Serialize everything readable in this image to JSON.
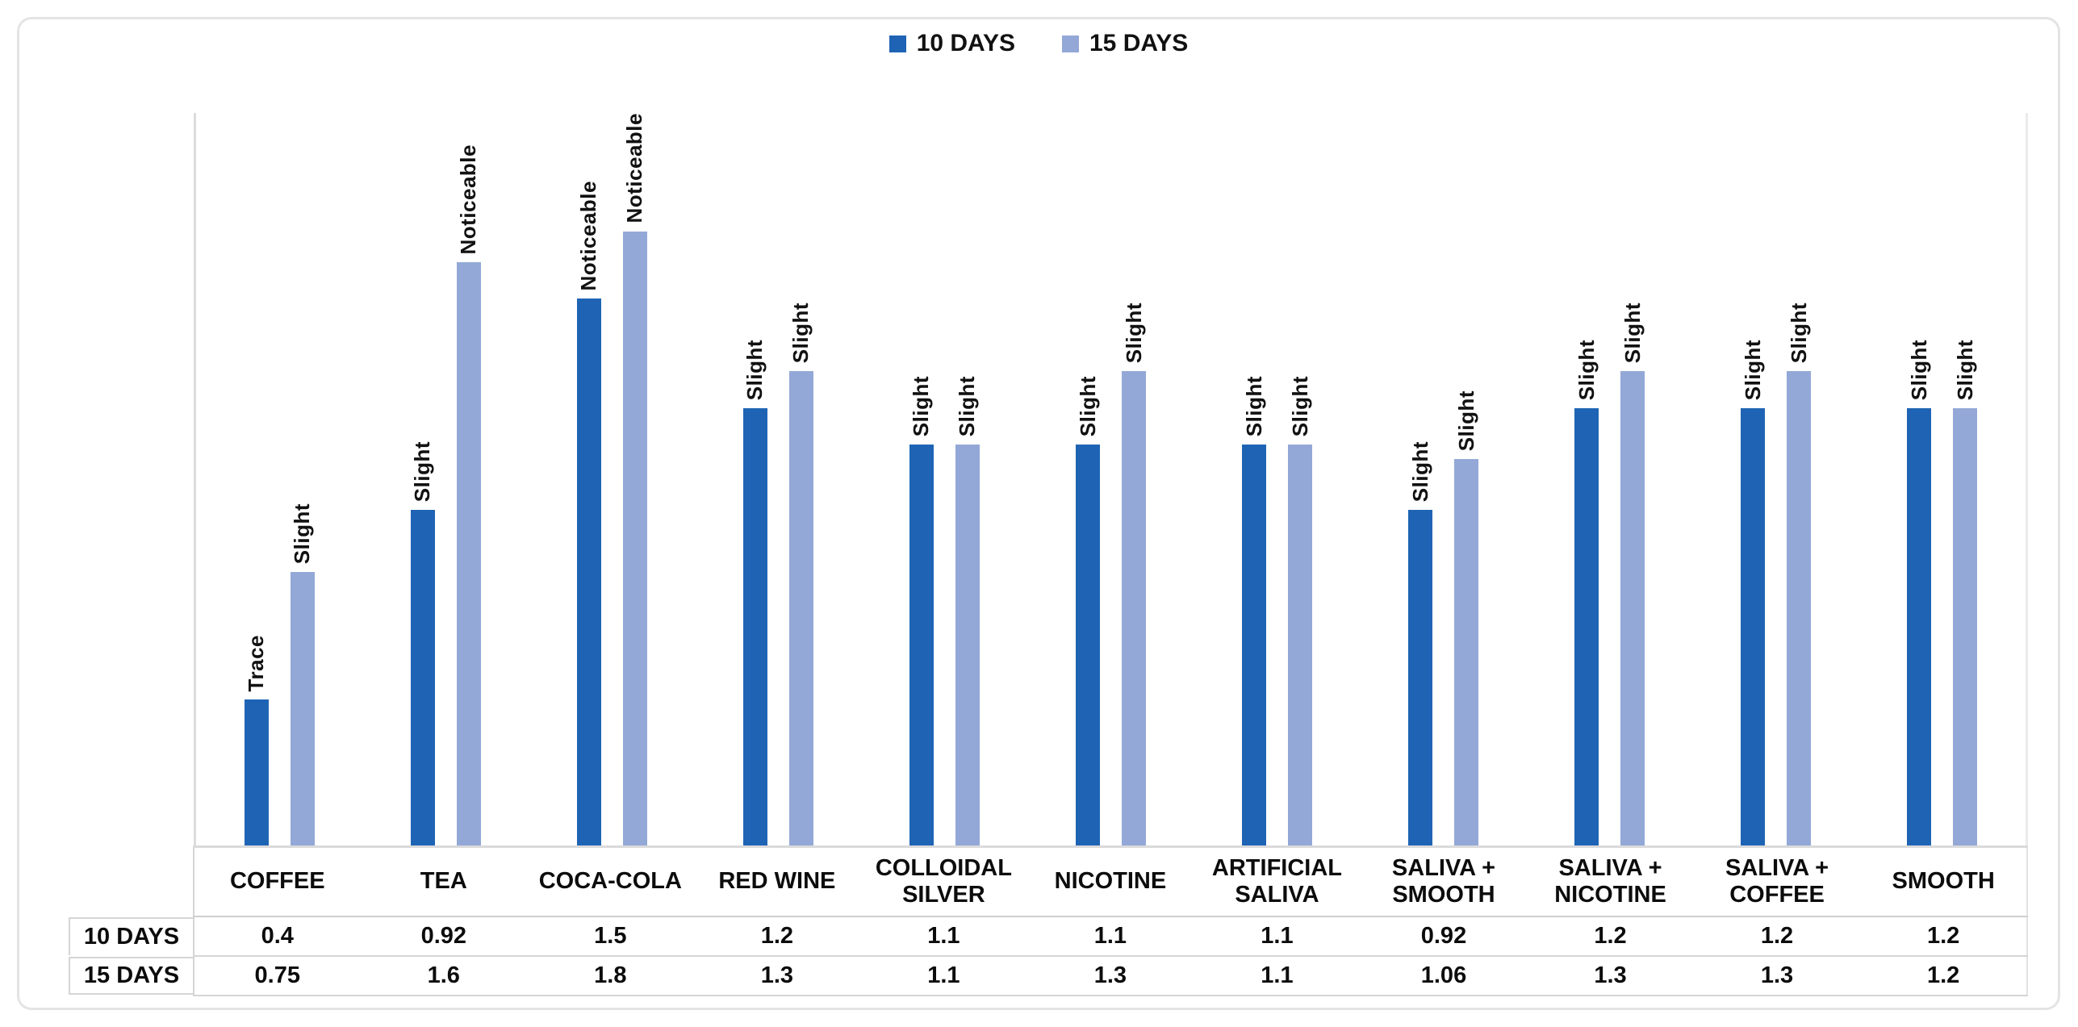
{
  "chart_data": {
    "type": "bar",
    "title": "",
    "xlabel": "",
    "ylabel": "",
    "categories": [
      "COFFEE",
      "TEA",
      "COCA-COLA",
      "RED WINE",
      "COLLOIDAL SILVER",
      "NICOTINE",
      "ARTIFICIAL SALIVA",
      "SALIVA + SMOOTH",
      "SALIVA + NICOTINE",
      "SALIVA + COFFEE",
      "SMOOTH"
    ],
    "series": [
      {
        "name": "10 DAYS",
        "color": "#1f64b4",
        "values": [
          0.4,
          0.92,
          1.5,
          1.2,
          1.1,
          1.1,
          1.1,
          0.92,
          1.2,
          1.2,
          1.2
        ],
        "point_labels": [
          "Trace",
          "Slight",
          "Noticeable",
          "Slight",
          "Slight",
          "Slight",
          "Slight",
          "Slight",
          "Slight",
          "Slight",
          "Slight"
        ]
      },
      {
        "name": "15 DAYS",
        "color": "#93a8d7",
        "values": [
          0.75,
          1.6,
          1.8,
          1.3,
          1.1,
          1.3,
          1.1,
          1.06,
          1.3,
          1.3,
          1.2
        ],
        "point_labels": [
          "Slight",
          "Noticeable",
          "Noticeable",
          "Slight",
          "Slight",
          "Slight",
          "Slight",
          "Slight",
          "Slight",
          "Slight",
          "Slight"
        ]
      }
    ],
    "ylim": [
      0,
      2
    ],
    "grid": false,
    "value_axis_labels_visible": false,
    "legend_position": "top-center",
    "data_table_shown": true,
    "table_row_headers": [
      "10 DAYS",
      "15 DAYS"
    ]
  }
}
